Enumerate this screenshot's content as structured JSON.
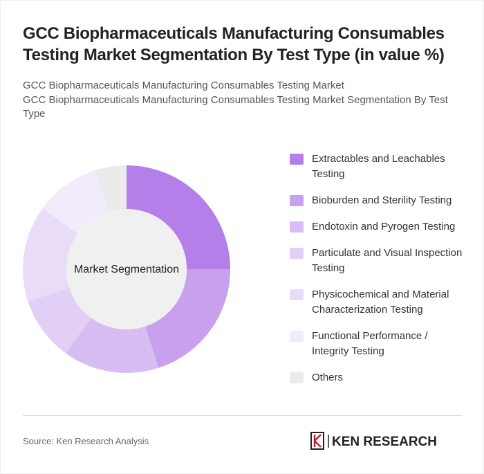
{
  "chart_data": {
    "type": "donut",
    "title": "GCC Biopharmaceuticals Manufacturing Consumables Testing Market Segmentation By Test Type (in value %)",
    "subtitles": [
      "GCC Biopharmaceuticals Manufacturing Consumables Testing Market",
      "GCC Biopharmaceuticals Manufacturing Consumables Testing Market Segmentation By Test Type"
    ],
    "center_label": "Market Segmentation",
    "categories": [
      "Extractables and Leachables Testing",
      "Bioburden and Sterility Testing",
      "Endotoxin and Pyrogen Testing",
      "Particulate and Visual Inspection Testing",
      "Physicochemical and Material Characterization Testing",
      "Functional Performance / Integrity Testing",
      "Others"
    ],
    "values": [
      25,
      20,
      15,
      10,
      15,
      10,
      5
    ],
    "colors": [
      "#b57fe9",
      "#c7a0ee",
      "#d7bdf3",
      "#e2cff6",
      "#e9dcf8",
      "#f2ebfb",
      "#ebebeb"
    ],
    "source": "Source: Ken Research Analysis",
    "brand": "KEN RESEARCH"
  }
}
